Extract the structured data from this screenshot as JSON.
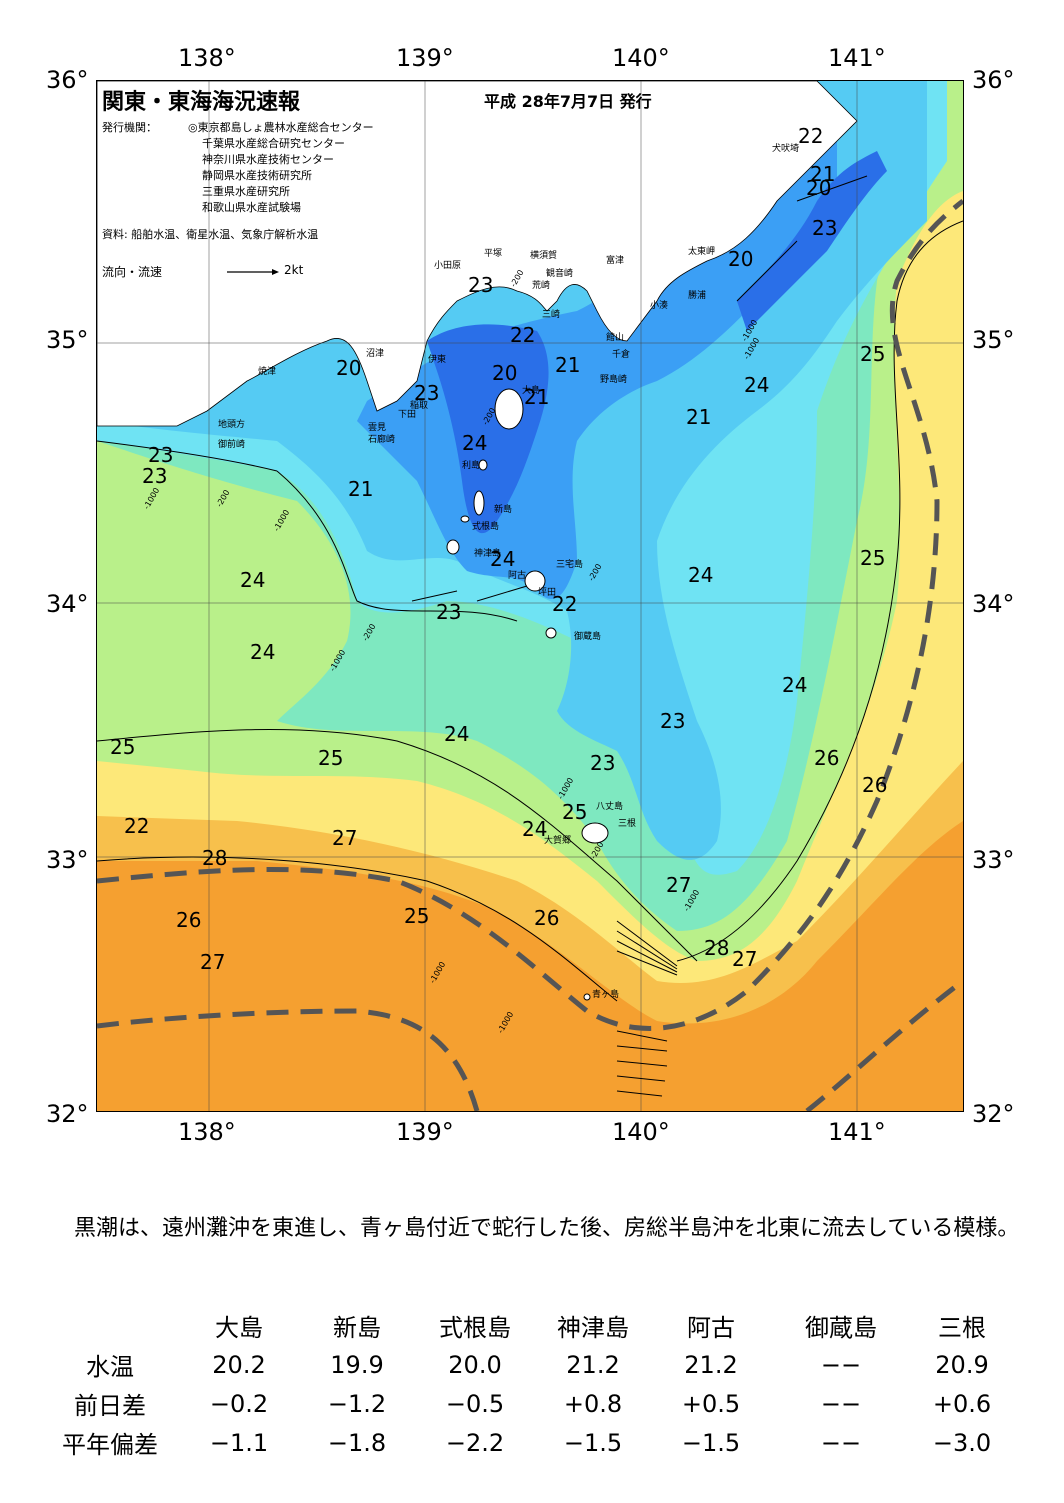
{
  "map": {
    "title": "関東・東海海況速報",
    "issue_date": "平成 28年7月7日 発行",
    "publisher_label": "発行機関：",
    "publishers": [
      "◎東京都島しょ農林水産総合センター",
      "千葉県水産総合研究センター",
      "神奈川県水産技術センター",
      "静岡県水産技術研究所",
      "三重県水産研究所",
      "和歌山県水産試験場"
    ],
    "source": "資料: 船舶水温、衛星水温、気象庁解析水温",
    "flow_legend_label": "流向・流速",
    "flow_legend_scale": "2kt",
    "lon_labels": [
      "138°",
      "139°",
      "140°",
      "141°"
    ],
    "lat_labels": [
      "36°",
      "35°",
      "34°",
      "33°",
      "32°"
    ],
    "isotherm_labels": [
      "22",
      "21",
      "20",
      "23",
      "20",
      "23",
      "22",
      "21",
      "20",
      "21",
      "25",
      "24",
      "23",
      "20",
      "21",
      "23",
      "24",
      "23",
      "21",
      "24",
      "22",
      "23",
      "24",
      "24",
      "24",
      "23",
      "24",
      "25",
      "25",
      "24",
      "23",
      "25",
      "26",
      "26",
      "22",
      "25",
      "27",
      "24",
      "28",
      "27",
      "26",
      "25",
      "26",
      "28",
      "27",
      "27"
    ],
    "place_names": [
      "犬吠埼",
      "太東岬",
      "勝浦",
      "小湊",
      "館山",
      "千倉",
      "野島崎",
      "富津",
      "観音崎",
      "横須賀",
      "平塚",
      "小田原",
      "荒崎",
      "三崎",
      "沼津",
      "伊東",
      "焼津",
      "稲取",
      "下田",
      "雲見",
      "石廊崎",
      "地頭方",
      "御前崎",
      "大島",
      "利島",
      "新島",
      "式根島",
      "神津島",
      "三宅島",
      "阿古",
      "坪田",
      "御蔵島",
      "八丈島",
      "三根",
      "大賀郷",
      "青ヶ島"
    ],
    "depth_labels": [
      "-200",
      "-200",
      "-1000",
      "-200",
      "-1000",
      "-200",
      "-1000",
      "-200",
      "-1000",
      "-1000",
      "-1000",
      "-1000",
      "-1000",
      "-1000",
      "-200"
    ],
    "colors": {
      "t20": "#1f5fe0",
      "t21": "#2f7ff0",
      "t22": "#3fa8f8",
      "t23": "#55d0f5",
      "t24": "#6fe8f2",
      "t24b": "#86ef9a",
      "t25": "#b8f08a",
      "t26": "#fff17a",
      "t27": "#f7c04c",
      "t28": "#f59a2a",
      "land": "#ffffff",
      "kuroshio_axis": "#555555"
    }
  },
  "description": "　黒潮は、遠州灘沖を東進し、青ヶ島付近で蛇行した後、房総半島沖を北東に流去している模様。",
  "stats": {
    "columns": [
      "大島",
      "新島",
      "式根島",
      "神津島",
      "阿古",
      "御蔵島",
      "三根"
    ],
    "rows": [
      {
        "label": "水温",
        "values": [
          "20.2",
          "19.9",
          "20.0",
          "21.2",
          "21.2",
          "−−",
          "20.9"
        ]
      },
      {
        "label": "前日差",
        "values": [
          "−0.2",
          "−1.2",
          "−0.5",
          "+0.8",
          "+0.5",
          "−−",
          "+0.6"
        ]
      },
      {
        "label": "平年偏差",
        "values": [
          "−1.1",
          "−1.8",
          "−2.2",
          "−1.5",
          "−1.5",
          "−−",
          "−3.0"
        ]
      }
    ]
  }
}
